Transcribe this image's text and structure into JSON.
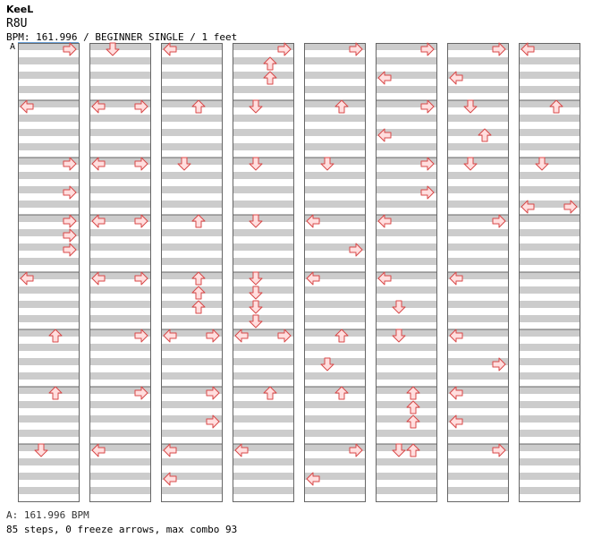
{
  "header": {
    "artist": "KeeL",
    "song": "R8U",
    "info": "BPM: 161.996 / BEGINNER SINGLE / 1 feet",
    "bpm_marker": "A"
  },
  "footer": {
    "bpm_line": "A: 161.996 BPM",
    "stats": "85 steps, 0 freeze arrows, max combo 93"
  },
  "colors": {
    "band": "#cccccc",
    "arrow_fill": "#ffdede",
    "arrow_stroke": "#d84848",
    "border": "#666666"
  },
  "chart_data": {
    "type": "step-chart",
    "columns": 8,
    "measures_per_column": 8,
    "rows_per_measure": 8,
    "lanes": [
      "left",
      "down",
      "up",
      "right"
    ],
    "notes": [
      {
        "c": 0,
        "m": 0,
        "r": 0,
        "d": "right"
      },
      {
        "c": 0,
        "m": 1,
        "r": 0,
        "d": "left"
      },
      {
        "c": 0,
        "m": 2,
        "r": 0,
        "d": "right"
      },
      {
        "c": 0,
        "m": 2,
        "r": 4,
        "d": "right"
      },
      {
        "c": 0,
        "m": 3,
        "r": 0,
        "d": "right"
      },
      {
        "c": 0,
        "m": 3,
        "r": 2,
        "d": "right"
      },
      {
        "c": 0,
        "m": 3,
        "r": 4,
        "d": "right"
      },
      {
        "c": 0,
        "m": 4,
        "r": 0,
        "d": "left"
      },
      {
        "c": 0,
        "m": 5,
        "r": 0,
        "d": "up"
      },
      {
        "c": 0,
        "m": 6,
        "r": 0,
        "d": "up"
      },
      {
        "c": 0,
        "m": 7,
        "r": 0,
        "d": "down"
      },
      {
        "c": 1,
        "m": 0,
        "r": 0,
        "d": "down"
      },
      {
        "c": 1,
        "m": 1,
        "r": 0,
        "d": "left"
      },
      {
        "c": 1,
        "m": 1,
        "r": 0,
        "d": "right"
      },
      {
        "c": 1,
        "m": 2,
        "r": 0,
        "d": "left"
      },
      {
        "c": 1,
        "m": 2,
        "r": 0,
        "d": "right"
      },
      {
        "c": 1,
        "m": 3,
        "r": 0,
        "d": "left"
      },
      {
        "c": 1,
        "m": 3,
        "r": 0,
        "d": "right"
      },
      {
        "c": 1,
        "m": 4,
        "r": 0,
        "d": "left"
      },
      {
        "c": 1,
        "m": 4,
        "r": 0,
        "d": "right"
      },
      {
        "c": 1,
        "m": 5,
        "r": 0,
        "d": "right"
      },
      {
        "c": 1,
        "m": 6,
        "r": 0,
        "d": "right"
      },
      {
        "c": 1,
        "m": 7,
        "r": 0,
        "d": "left"
      },
      {
        "c": 2,
        "m": 0,
        "r": 0,
        "d": "left"
      },
      {
        "c": 2,
        "m": 1,
        "r": 0,
        "d": "up"
      },
      {
        "c": 2,
        "m": 2,
        "r": 0,
        "d": "down"
      },
      {
        "c": 2,
        "m": 3,
        "r": 0,
        "d": "up"
      },
      {
        "c": 2,
        "m": 4,
        "r": 0,
        "d": "up"
      },
      {
        "c": 2,
        "m": 4,
        "r": 2,
        "d": "up"
      },
      {
        "c": 2,
        "m": 4,
        "r": 4,
        "d": "up"
      },
      {
        "c": 2,
        "m": 5,
        "r": 0,
        "d": "left"
      },
      {
        "c": 2,
        "m": 5,
        "r": 0,
        "d": "right"
      },
      {
        "c": 2,
        "m": 6,
        "r": 0,
        "d": "right"
      },
      {
        "c": 2,
        "m": 6,
        "r": 4,
        "d": "right"
      },
      {
        "c": 2,
        "m": 7,
        "r": 0,
        "d": "left"
      },
      {
        "c": 2,
        "m": 7,
        "r": 4,
        "d": "left"
      },
      {
        "c": 3,
        "m": 0,
        "r": 0,
        "d": "right"
      },
      {
        "c": 3,
        "m": 0,
        "r": 2,
        "d": "up"
      },
      {
        "c": 3,
        "m": 0,
        "r": 4,
        "d": "up"
      },
      {
        "c": 3,
        "m": 1,
        "r": 0,
        "d": "down"
      },
      {
        "c": 3,
        "m": 2,
        "r": 0,
        "d": "down"
      },
      {
        "c": 3,
        "m": 3,
        "r": 0,
        "d": "down"
      },
      {
        "c": 3,
        "m": 4,
        "r": 0,
        "d": "down"
      },
      {
        "c": 3,
        "m": 4,
        "r": 2,
        "d": "down"
      },
      {
        "c": 3,
        "m": 4,
        "r": 4,
        "d": "down"
      },
      {
        "c": 3,
        "m": 4,
        "r": 6,
        "d": "down"
      },
      {
        "c": 3,
        "m": 5,
        "r": 0,
        "d": "left"
      },
      {
        "c": 3,
        "m": 5,
        "r": 0,
        "d": "right"
      },
      {
        "c": 3,
        "m": 6,
        "r": 0,
        "d": "up"
      },
      {
        "c": 3,
        "m": 7,
        "r": 0,
        "d": "left"
      },
      {
        "c": 4,
        "m": 0,
        "r": 0,
        "d": "right"
      },
      {
        "c": 4,
        "m": 1,
        "r": 0,
        "d": "up"
      },
      {
        "c": 4,
        "m": 2,
        "r": 0,
        "d": "down"
      },
      {
        "c": 4,
        "m": 3,
        "r": 0,
        "d": "left"
      },
      {
        "c": 4,
        "m": 3,
        "r": 4,
        "d": "right"
      },
      {
        "c": 4,
        "m": 4,
        "r": 0,
        "d": "left"
      },
      {
        "c": 4,
        "m": 5,
        "r": 0,
        "d": "up"
      },
      {
        "c": 4,
        "m": 5,
        "r": 4,
        "d": "down"
      },
      {
        "c": 4,
        "m": 6,
        "r": 0,
        "d": "up"
      },
      {
        "c": 4,
        "m": 7,
        "r": 0,
        "d": "right"
      },
      {
        "c": 4,
        "m": 7,
        "r": 4,
        "d": "left"
      },
      {
        "c": 5,
        "m": 0,
        "r": 0,
        "d": "right"
      },
      {
        "c": 5,
        "m": 0,
        "r": 4,
        "d": "left"
      },
      {
        "c": 5,
        "m": 1,
        "r": 0,
        "d": "right"
      },
      {
        "c": 5,
        "m": 1,
        "r": 4,
        "d": "left"
      },
      {
        "c": 5,
        "m": 2,
        "r": 0,
        "d": "right"
      },
      {
        "c": 5,
        "m": 2,
        "r": 4,
        "d": "right"
      },
      {
        "c": 5,
        "m": 3,
        "r": 0,
        "d": "left"
      },
      {
        "c": 5,
        "m": 4,
        "r": 0,
        "d": "left"
      },
      {
        "c": 5,
        "m": 4,
        "r": 4,
        "d": "down"
      },
      {
        "c": 5,
        "m": 5,
        "r": 0,
        "d": "down"
      },
      {
        "c": 5,
        "m": 6,
        "r": 0,
        "d": "up"
      },
      {
        "c": 5,
        "m": 6,
        "r": 2,
        "d": "up"
      },
      {
        "c": 5,
        "m": 6,
        "r": 4,
        "d": "up"
      },
      {
        "c": 5,
        "m": 7,
        "r": 0,
        "d": "down"
      },
      {
        "c": 5,
        "m": 7,
        "r": 0,
        "d": "up"
      },
      {
        "c": 6,
        "m": 0,
        "r": 0,
        "d": "right"
      },
      {
        "c": 6,
        "m": 0,
        "r": 4,
        "d": "left"
      },
      {
        "c": 6,
        "m": 1,
        "r": 0,
        "d": "down"
      },
      {
        "c": 6,
        "m": 1,
        "r": 4,
        "d": "up"
      },
      {
        "c": 6,
        "m": 2,
        "r": 0,
        "d": "down"
      },
      {
        "c": 6,
        "m": 3,
        "r": 0,
        "d": "right"
      },
      {
        "c": 6,
        "m": 4,
        "r": 0,
        "d": "left"
      },
      {
        "c": 6,
        "m": 5,
        "r": 0,
        "d": "left"
      },
      {
        "c": 6,
        "m": 5,
        "r": 4,
        "d": "right"
      },
      {
        "c": 6,
        "m": 6,
        "r": 0,
        "d": "left"
      },
      {
        "c": 6,
        "m": 6,
        "r": 4,
        "d": "left"
      },
      {
        "c": 6,
        "m": 7,
        "r": 0,
        "d": "right"
      },
      {
        "c": 7,
        "m": 0,
        "r": 0,
        "d": "left"
      },
      {
        "c": 7,
        "m": 1,
        "r": 0,
        "d": "up"
      },
      {
        "c": 7,
        "m": 2,
        "r": 0,
        "d": "down"
      },
      {
        "c": 7,
        "m": 2,
        "r": 6,
        "d": "left"
      },
      {
        "c": 7,
        "m": 2,
        "r": 6,
        "d": "right"
      }
    ]
  }
}
